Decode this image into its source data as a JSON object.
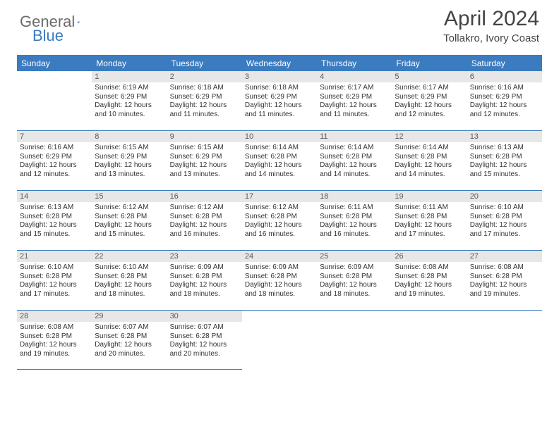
{
  "logo": {
    "word1": "General",
    "word2": "Blue"
  },
  "title": "April 2024",
  "location": "Tollakro, Ivory Coast",
  "colors": {
    "accent": "#3b7bbf",
    "header_text": "#ffffff",
    "daynum_bg": "#e7e7e7",
    "body_text": "#333333",
    "logo_gray": "#6b6b6b"
  },
  "day_names": [
    "Sunday",
    "Monday",
    "Tuesday",
    "Wednesday",
    "Thursday",
    "Friday",
    "Saturday"
  ],
  "weeks": [
    [
      {
        "num": "",
        "sunrise": "",
        "sunset": "",
        "daylight": ""
      },
      {
        "num": "1",
        "sunrise": "Sunrise: 6:19 AM",
        "sunset": "Sunset: 6:29 PM",
        "daylight": "Daylight: 12 hours and 10 minutes."
      },
      {
        "num": "2",
        "sunrise": "Sunrise: 6:18 AM",
        "sunset": "Sunset: 6:29 PM",
        "daylight": "Daylight: 12 hours and 11 minutes."
      },
      {
        "num": "3",
        "sunrise": "Sunrise: 6:18 AM",
        "sunset": "Sunset: 6:29 PM",
        "daylight": "Daylight: 12 hours and 11 minutes."
      },
      {
        "num": "4",
        "sunrise": "Sunrise: 6:17 AM",
        "sunset": "Sunset: 6:29 PM",
        "daylight": "Daylight: 12 hours and 11 minutes."
      },
      {
        "num": "5",
        "sunrise": "Sunrise: 6:17 AM",
        "sunset": "Sunset: 6:29 PM",
        "daylight": "Daylight: 12 hours and 12 minutes."
      },
      {
        "num": "6",
        "sunrise": "Sunrise: 6:16 AM",
        "sunset": "Sunset: 6:29 PM",
        "daylight": "Daylight: 12 hours and 12 minutes."
      }
    ],
    [
      {
        "num": "7",
        "sunrise": "Sunrise: 6:16 AM",
        "sunset": "Sunset: 6:29 PM",
        "daylight": "Daylight: 12 hours and 12 minutes."
      },
      {
        "num": "8",
        "sunrise": "Sunrise: 6:15 AM",
        "sunset": "Sunset: 6:29 PM",
        "daylight": "Daylight: 12 hours and 13 minutes."
      },
      {
        "num": "9",
        "sunrise": "Sunrise: 6:15 AM",
        "sunset": "Sunset: 6:29 PM",
        "daylight": "Daylight: 12 hours and 13 minutes."
      },
      {
        "num": "10",
        "sunrise": "Sunrise: 6:14 AM",
        "sunset": "Sunset: 6:28 PM",
        "daylight": "Daylight: 12 hours and 14 minutes."
      },
      {
        "num": "11",
        "sunrise": "Sunrise: 6:14 AM",
        "sunset": "Sunset: 6:28 PM",
        "daylight": "Daylight: 12 hours and 14 minutes."
      },
      {
        "num": "12",
        "sunrise": "Sunrise: 6:14 AM",
        "sunset": "Sunset: 6:28 PM",
        "daylight": "Daylight: 12 hours and 14 minutes."
      },
      {
        "num": "13",
        "sunrise": "Sunrise: 6:13 AM",
        "sunset": "Sunset: 6:28 PM",
        "daylight": "Daylight: 12 hours and 15 minutes."
      }
    ],
    [
      {
        "num": "14",
        "sunrise": "Sunrise: 6:13 AM",
        "sunset": "Sunset: 6:28 PM",
        "daylight": "Daylight: 12 hours and 15 minutes."
      },
      {
        "num": "15",
        "sunrise": "Sunrise: 6:12 AM",
        "sunset": "Sunset: 6:28 PM",
        "daylight": "Daylight: 12 hours and 15 minutes."
      },
      {
        "num": "16",
        "sunrise": "Sunrise: 6:12 AM",
        "sunset": "Sunset: 6:28 PM",
        "daylight": "Daylight: 12 hours and 16 minutes."
      },
      {
        "num": "17",
        "sunrise": "Sunrise: 6:12 AM",
        "sunset": "Sunset: 6:28 PM",
        "daylight": "Daylight: 12 hours and 16 minutes."
      },
      {
        "num": "18",
        "sunrise": "Sunrise: 6:11 AM",
        "sunset": "Sunset: 6:28 PM",
        "daylight": "Daylight: 12 hours and 16 minutes."
      },
      {
        "num": "19",
        "sunrise": "Sunrise: 6:11 AM",
        "sunset": "Sunset: 6:28 PM",
        "daylight": "Daylight: 12 hours and 17 minutes."
      },
      {
        "num": "20",
        "sunrise": "Sunrise: 6:10 AM",
        "sunset": "Sunset: 6:28 PM",
        "daylight": "Daylight: 12 hours and 17 minutes."
      }
    ],
    [
      {
        "num": "21",
        "sunrise": "Sunrise: 6:10 AM",
        "sunset": "Sunset: 6:28 PM",
        "daylight": "Daylight: 12 hours and 17 minutes."
      },
      {
        "num": "22",
        "sunrise": "Sunrise: 6:10 AM",
        "sunset": "Sunset: 6:28 PM",
        "daylight": "Daylight: 12 hours and 18 minutes."
      },
      {
        "num": "23",
        "sunrise": "Sunrise: 6:09 AM",
        "sunset": "Sunset: 6:28 PM",
        "daylight": "Daylight: 12 hours and 18 minutes."
      },
      {
        "num": "24",
        "sunrise": "Sunrise: 6:09 AM",
        "sunset": "Sunset: 6:28 PM",
        "daylight": "Daylight: 12 hours and 18 minutes."
      },
      {
        "num": "25",
        "sunrise": "Sunrise: 6:09 AM",
        "sunset": "Sunset: 6:28 PM",
        "daylight": "Daylight: 12 hours and 18 minutes."
      },
      {
        "num": "26",
        "sunrise": "Sunrise: 6:08 AM",
        "sunset": "Sunset: 6:28 PM",
        "daylight": "Daylight: 12 hours and 19 minutes."
      },
      {
        "num": "27",
        "sunrise": "Sunrise: 6:08 AM",
        "sunset": "Sunset: 6:28 PM",
        "daylight": "Daylight: 12 hours and 19 minutes."
      }
    ],
    [
      {
        "num": "28",
        "sunrise": "Sunrise: 6:08 AM",
        "sunset": "Sunset: 6:28 PM",
        "daylight": "Daylight: 12 hours and 19 minutes."
      },
      {
        "num": "29",
        "sunrise": "Sunrise: 6:07 AM",
        "sunset": "Sunset: 6:28 PM",
        "daylight": "Daylight: 12 hours and 20 minutes."
      },
      {
        "num": "30",
        "sunrise": "Sunrise: 6:07 AM",
        "sunset": "Sunset: 6:28 PM",
        "daylight": "Daylight: 12 hours and 20 minutes."
      },
      {
        "num": "",
        "sunrise": "",
        "sunset": "",
        "daylight": ""
      },
      {
        "num": "",
        "sunrise": "",
        "sunset": "",
        "daylight": ""
      },
      {
        "num": "",
        "sunrise": "",
        "sunset": "",
        "daylight": ""
      },
      {
        "num": "",
        "sunrise": "",
        "sunset": "",
        "daylight": ""
      }
    ]
  ]
}
